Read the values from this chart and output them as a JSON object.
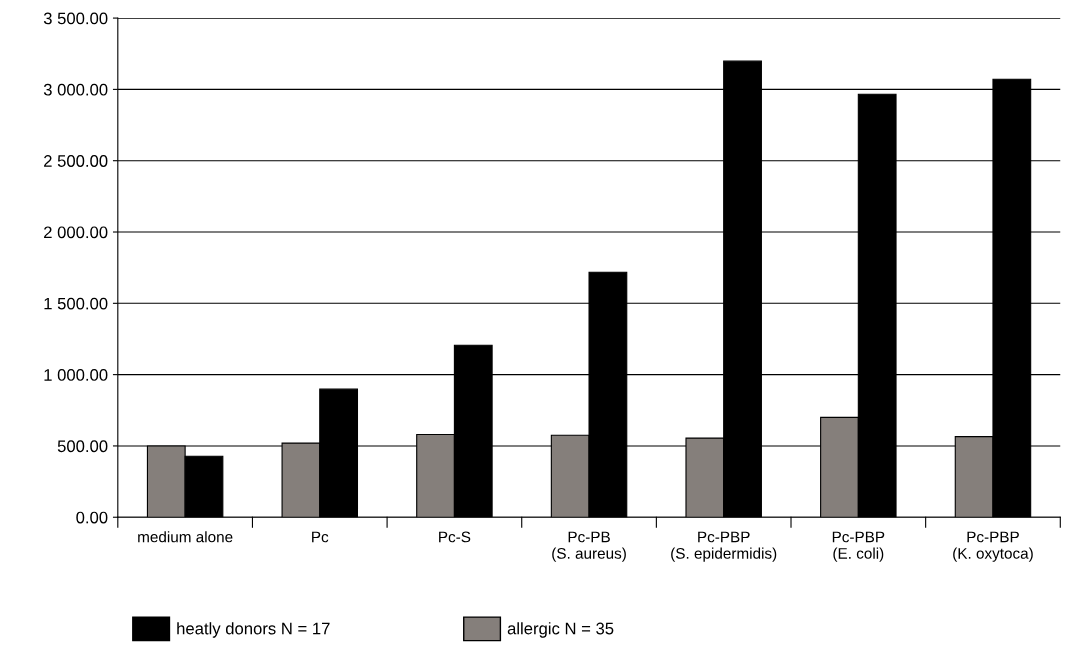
{
  "chart_data": {
    "type": "bar",
    "categories": [
      "medium alone",
      "Pc",
      "Pc-S",
      "Pc-PB\n(S. aureus)",
      "Pc-PBP\n(S. epidermidis)",
      "Pc-PBP\n(E. coli)",
      "Pc-PBP\n(K. oxytoca)"
    ],
    "series": [
      {
        "name": "allergic N = 35",
        "color": "#857f7b",
        "values": [
          500,
          520,
          580,
          575,
          555,
          700,
          565
        ]
      },
      {
        "name": "heatly donors N = 17",
        "color": "#000000",
        "values": [
          428,
          898,
          1206,
          1718,
          3198,
          2966,
          3071
        ]
      }
    ],
    "ylim": [
      0,
      3500
    ],
    "yticks": [
      {
        "value": 0,
        "label": "0.00"
      },
      {
        "value": 500,
        "label": "500.00"
      },
      {
        "value": 1000,
        "label": "1 000.00"
      },
      {
        "value": 1500,
        "label": "1 500.00"
      },
      {
        "value": 2000,
        "label": "2 000.00"
      },
      {
        "value": 2500,
        "label": "2 500.00"
      },
      {
        "value": 3000,
        "label": "3 000.00"
      },
      {
        "value": 3500,
        "label": "3 500.00"
      }
    ],
    "grid": "y",
    "legend": "bottom"
  }
}
